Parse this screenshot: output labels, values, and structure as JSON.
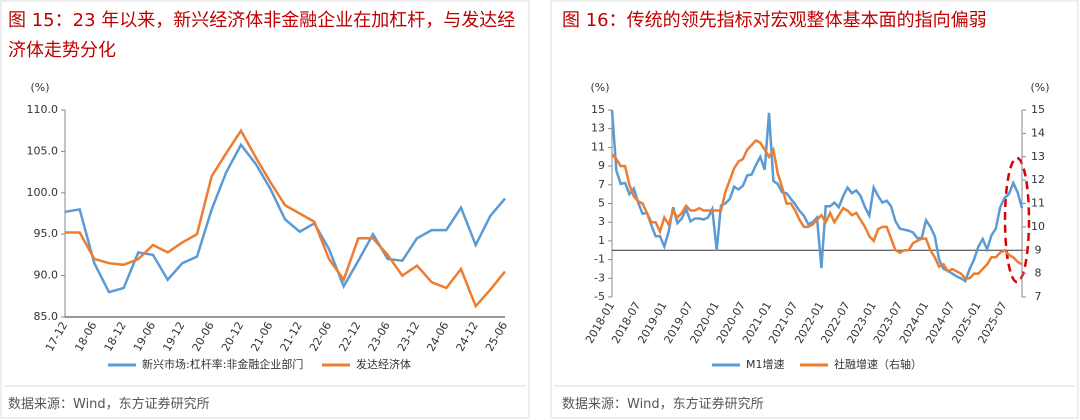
{
  "chart_data": [
    {
      "type": "line",
      "title": "图 15：23 年以来，新兴经济体非金融企业在加杠杆，与发达经济体走势分化",
      "y_unit": "(%)",
      "source": "数据来源：Wind，东方证券研究所",
      "categories": [
        "17-12",
        null,
        "18-06",
        null,
        "18-12",
        null,
        "19-06",
        null,
        "19-12",
        null,
        "20-06",
        null,
        "20-12",
        null,
        "21-06",
        null,
        "21-12",
        null,
        "22-06",
        null,
        "22-12",
        null,
        "23-06",
        null,
        "23-12",
        null,
        "24-06",
        null,
        "24-12",
        null,
        "25-06"
      ],
      "series": [
        {
          "name": "新兴市场:杠杆率:非金融企业部门",
          "color": "#5b9bd5",
          "values": [
            97.7,
            98.0,
            91.5,
            88.0,
            88.5,
            92.8,
            92.5,
            89.5,
            91.5,
            92.3,
            98.0,
            102.5,
            105.8,
            103.5,
            100.5,
            96.8,
            95.3,
            96.3,
            93.2,
            88.7,
            91.8,
            95.0,
            92.0,
            91.8,
            94.5,
            95.5,
            95.5,
            98.2,
            93.7,
            97.2,
            99.3
          ]
        },
        {
          "name": "发达经济体",
          "color": "#ed7d31",
          "values": [
            95.2,
            95.2,
            92.0,
            91.5,
            91.3,
            92.0,
            93.7,
            92.8,
            94.0,
            95.0,
            102.0,
            104.8,
            107.5,
            104.3,
            101.3,
            98.5,
            97.5,
            96.5,
            92.0,
            89.5,
            94.5,
            94.5,
            92.5,
            90.0,
            91.2,
            89.2,
            88.5,
            90.8,
            86.3,
            88.3,
            90.5
          ]
        }
      ],
      "ylim": [
        85,
        110
      ],
      "yticks": [
        {
          "value": 85,
          "label": "85.0"
        },
        {
          "value": 90,
          "label": "90.0"
        },
        {
          "value": 95,
          "label": "95.0"
        },
        {
          "value": 100,
          "label": "100.0"
        },
        {
          "value": 105,
          "label": "105.0"
        },
        {
          "value": 110,
          "label": "110.0"
        }
      ],
      "legend": "bottom"
    },
    {
      "type": "line",
      "title": "图 16：传统的领先指标对宏观整体基本面的指向偏弱",
      "y_unit": "(%)",
      "y2_unit": "(%)",
      "source": "数据来源：Wind，东方证券研究所",
      "categories": [
        "2018-01",
        null,
        null,
        null,
        null,
        null,
        "2018-07",
        null,
        null,
        null,
        null,
        null,
        "2019-01",
        null,
        null,
        null,
        null,
        null,
        "2019-07",
        null,
        null,
        null,
        null,
        null,
        "2020-01",
        null,
        null,
        null,
        null,
        null,
        "2020-07",
        null,
        null,
        null,
        null,
        null,
        "2021-01",
        null,
        null,
        null,
        null,
        null,
        "2021-07",
        null,
        null,
        null,
        null,
        null,
        "2022-01",
        null,
        null,
        null,
        null,
        null,
        "2022-07",
        null,
        null,
        null,
        null,
        null,
        "2023-01",
        null,
        null,
        null,
        null,
        null,
        "2023-07",
        null,
        null,
        null,
        null,
        null,
        "2024-01",
        null,
        null,
        null,
        null,
        null,
        "2024-07",
        null,
        null,
        null,
        null,
        null,
        "2025-01",
        null,
        null,
        null,
        null,
        null,
        "2025-07",
        null,
        null,
        null,
        null
      ],
      "series": [
        {
          "name": "M1增速",
          "color": "#5b9bd5",
          "values": [
            15,
            8.5,
            7.1,
            7.2,
            6,
            6.6,
            5.1,
            3.9,
            4,
            2.7,
            1.5,
            1.5,
            0.4,
            2,
            4.6,
            2.9,
            3.4,
            4.4,
            3.1,
            3.4,
            3.4,
            3.3,
            3.5,
            4.4,
            0,
            4.8,
            5,
            5.5,
            6.8,
            6.5,
            6.9,
            8,
            8.1,
            9.1,
            10,
            8.6,
            14.7,
            7.4,
            7.1,
            6.2,
            6.1,
            5.5,
            4.9,
            4.2,
            3.7,
            2.8,
            3,
            3.5,
            -1.9,
            4.7,
            4.7,
            5.1,
            4.6,
            5.8,
            6.7,
            6.1,
            6.4,
            5.8,
            4.6,
            3.7,
            6.7,
            5.8,
            5.1,
            5.3,
            4.7,
            3.1,
            2.3,
            2.2,
            2.1,
            1.9,
            1.3,
            1.3,
            3.2,
            2.5,
            1.5,
            -1,
            -2,
            -2.2,
            -2.5,
            -2.8,
            -3,
            -3.3,
            -2,
            -1,
            0.4,
            1.2,
            0.1,
            1.6,
            2.3,
            4.6,
            5.6,
            6.0,
            7.2,
            6.2,
            4.5
          ]
        },
        {
          "name": "社融增速（右轴）",
          "color": "#ed7d31",
          "axis": "y2",
          "values": [
            13.1,
            12.9,
            12.6,
            12.6,
            11.8,
            11.3,
            11.1,
            11.0,
            10.6,
            10.2,
            10.2,
            9.8,
            10.4,
            10.1,
            10.7,
            10.4,
            10.6,
            10.9,
            10.7,
            10.7,
            10.8,
            10.7,
            10.7,
            10.7,
            10.7,
            10.7,
            11.5,
            12.0,
            12.5,
            12.8,
            12.9,
            13.3,
            13.5,
            13.7,
            13.6,
            13.3,
            13.0,
            13.3,
            12.3,
            11.7,
            11.0,
            11.0,
            10.7,
            10.3,
            10.0,
            10.0,
            10.1,
            10.3,
            10.5,
            10.2,
            10.6,
            10.2,
            10.5,
            10.8,
            10.7,
            10.5,
            10.6,
            10.3,
            10.0,
            9.6,
            9.4,
            9.9,
            10.0,
            10.0,
            9.5,
            9.0,
            8.9,
            9.0,
            9.0,
            9.3,
            9.4,
            9.5,
            9.5,
            9.0,
            8.7,
            8.3,
            8.4,
            8.1,
            8.2,
            8.1,
            8.0,
            7.8,
            7.8,
            8.0,
            8.0,
            8.2,
            8.4,
            8.7,
            8.7,
            8.9,
            9.0,
            8.8,
            8.7,
            8.5,
            8.4
          ]
        }
      ],
      "ylim": [
        -5,
        15
      ],
      "yticks": [
        -5,
        -3,
        -1,
        1,
        3,
        5,
        7,
        9,
        11,
        13,
        15
      ],
      "y2lim": [
        7,
        15
      ],
      "y2ticks": [
        7,
        8,
        9,
        10,
        11,
        12,
        13,
        14,
        15
      ],
      "legend": "bottom"
    }
  ]
}
